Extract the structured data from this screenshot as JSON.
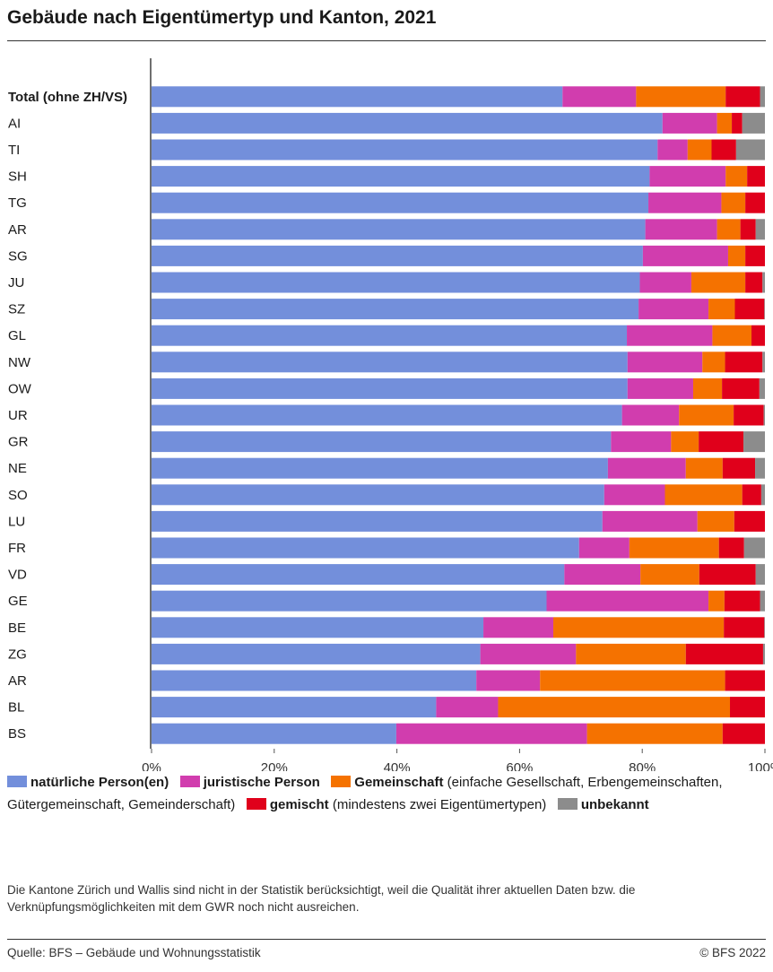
{
  "title": "Gebäude nach Eigentümertyp und Kanton, 2021",
  "legend": {
    "natuerlich": {
      "label": "natürliche Person(en)",
      "desc": ""
    },
    "juristisch": {
      "label": "juristische Person",
      "desc": ""
    },
    "gemeinschaft": {
      "label": "Gemeinschaft",
      "desc": "(einfache Gesellschaft, Erbengemeinschaften, Gütergemeinschaft, Gemeinderschaft)"
    },
    "gemischt": {
      "label": "gemischt",
      "desc": "(mindestens zwei Eigentümertypen)"
    },
    "unbekannt": {
      "label": "unbekannt",
      "desc": ""
    }
  },
  "note": "Die Kantone Zürich und Wallis sind nicht in der Statistik berücksichtigt, weil die Qualität ihrer aktuellen Daten bzw. die Verknüpfungsmöglichkeiten mit dem GWR noch nicht ausreichen.",
  "footer": {
    "source": "Quelle: BFS – Gebäude und Wohnungsstatistik",
    "copyright": "© BFS 2022"
  },
  "chart_data": {
    "type": "bar",
    "orientation": "horizontal",
    "stacked": true,
    "xlim": [
      0,
      100
    ],
    "xticks": [
      "0%",
      "20%",
      "40%",
      "60%",
      "80%",
      "100%"
    ],
    "grid": false,
    "categories": [
      "Total (ohne ZH/VS)",
      "AI",
      "TI",
      "SH",
      "TG",
      "AR",
      "SG",
      "JU",
      "SZ",
      "GL",
      "NW",
      "OW",
      "UR",
      "GR",
      "NE",
      "SO",
      "LU",
      "FR",
      "VD",
      "GE",
      "BE",
      "ZG",
      "AR",
      "BL",
      "BS"
    ],
    "bold_categories": [
      "Total (ohne ZH/VS)"
    ],
    "series": [
      {
        "name": "natürliche Person(en)",
        "color": "#738fdb",
        "values": [
          67.0,
          83.3,
          82.5,
          81.2,
          81.0,
          80.5,
          80.1,
          79.6,
          79.4,
          77.8,
          77.6,
          77.6,
          76.7,
          74.9,
          74.4,
          73.8,
          73.5,
          69.7,
          67.3,
          64.4,
          54.1,
          53.6,
          53.0,
          46.4,
          39.9
        ]
      },
      {
        "name": "juristische Person",
        "color": "#d13dae",
        "values": [
          12.0,
          8.9,
          4.9,
          12.4,
          11.9,
          11.7,
          13.9,
          8.4,
          11.4,
          14.0,
          12.2,
          10.7,
          9.3,
          9.8,
          12.7,
          9.9,
          15.5,
          8.2,
          12.4,
          26.4,
          11.4,
          15.6,
          10.4,
          10.1,
          31.1
        ]
      },
      {
        "name": "Gemeinschaft",
        "color": "#f57200",
        "values": [
          14.6,
          2.4,
          3.9,
          3.5,
          3.9,
          3.8,
          2.8,
          8.8,
          4.3,
          6.4,
          3.7,
          4.7,
          8.9,
          4.5,
          6.0,
          12.6,
          6.0,
          14.6,
          9.6,
          2.6,
          27.8,
          17.9,
          30.2,
          37.8,
          22.1
        ]
      },
      {
        "name": "gemischt",
        "color": "#e0001b",
        "values": [
          5.6,
          1.7,
          4.0,
          2.9,
          3.2,
          2.5,
          3.2,
          2.8,
          4.8,
          2.2,
          6.1,
          6.1,
          4.9,
          7.3,
          5.3,
          3.1,
          5.0,
          4.1,
          9.2,
          5.8,
          6.6,
          12.6,
          6.5,
          5.7,
          6.9
        ]
      },
      {
        "name": "unbekannt",
        "color": "#8c8c8c",
        "values": [
          0.8,
          3.7,
          4.7,
          0.0,
          0.0,
          1.5,
          0.0,
          0.4,
          0.1,
          0.0,
          0.4,
          0.9,
          0.2,
          3.5,
          1.6,
          0.6,
          0.0,
          3.4,
          1.5,
          0.8,
          0.1,
          0.3,
          0.0,
          0.0,
          0.0
        ]
      }
    ]
  }
}
